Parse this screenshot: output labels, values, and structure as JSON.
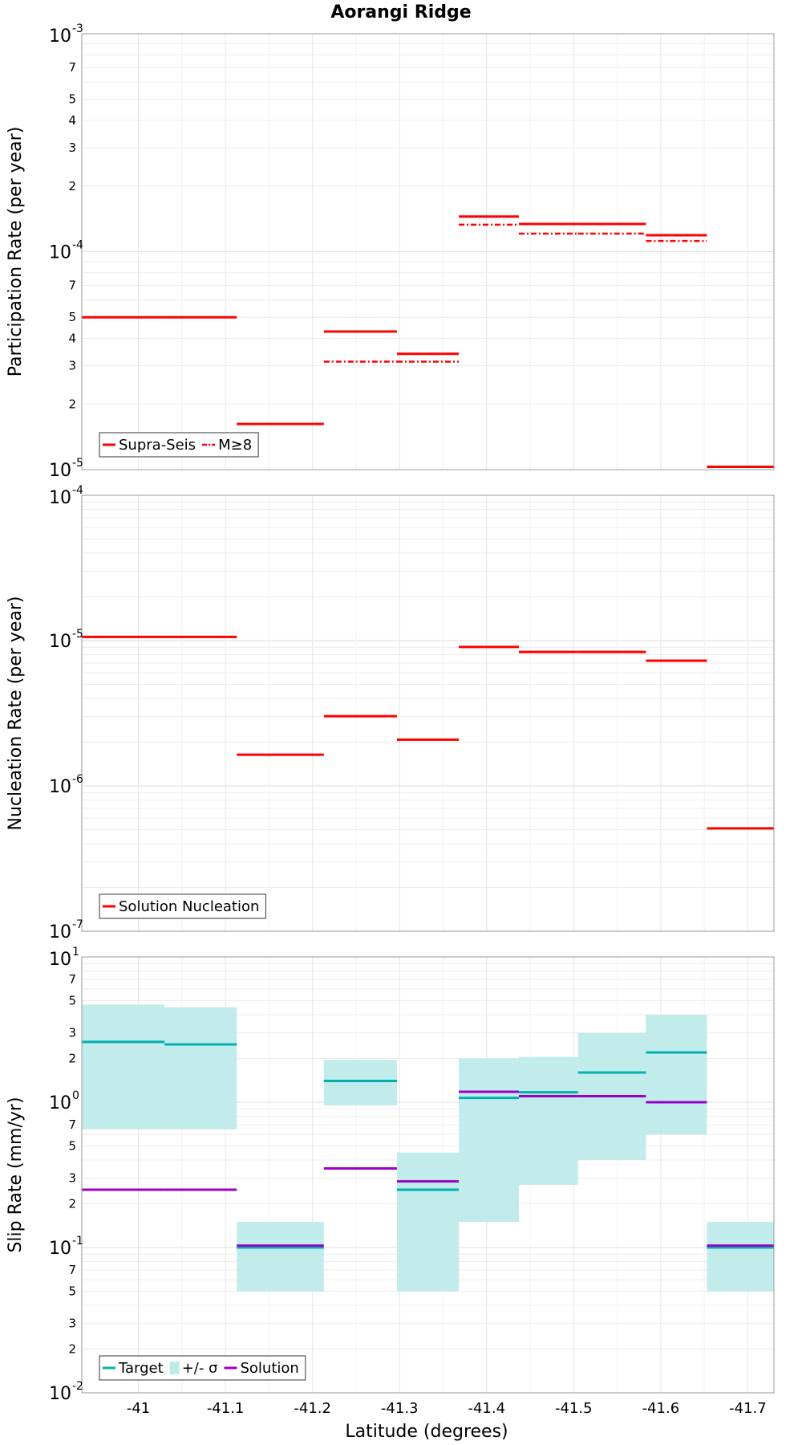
{
  "chart_data": {
    "title": "Aorangi Ridge",
    "xlabel": "Latitude (degrees)",
    "xlim": [
      -40.935,
      -41.73
    ],
    "xticks": [
      -41,
      -41.1,
      -41.2,
      -41.3,
      -41.4,
      -41.5,
      -41.6,
      -41.7
    ],
    "xtick_labels": [
      "-41",
      "-41.1",
      "-41.2",
      "-41.3",
      "-41.4",
      "-41.5",
      "-41.6",
      "-41.7"
    ],
    "colors": {
      "red": "#ff0000",
      "cyan": "#00b0b0",
      "band": "#bfeaea",
      "purple": "#9900cc"
    },
    "panels": [
      {
        "type": "line",
        "ylabel": "Participation Rate (per year)",
        "yscale": "log",
        "ylim": [
          1e-05,
          0.001
        ],
        "major_ticks": [
          {
            "value": 1e-05,
            "base": "10",
            "exp": "-5"
          },
          {
            "value": 0.0001,
            "base": "10",
            "exp": "-4"
          },
          {
            "value": 0.001,
            "base": "10",
            "exp": "-3"
          }
        ],
        "minor_ticks": [
          {
            "value": 2e-05,
            "label": "2"
          },
          {
            "value": 3e-05,
            "label": "3"
          },
          {
            "value": 4e-05,
            "label": "4"
          },
          {
            "value": 5e-05,
            "label": "5"
          },
          {
            "value": 7e-05,
            "label": "7"
          },
          {
            "value": 0.0002,
            "label": "2"
          },
          {
            "value": 0.0003,
            "label": "3"
          },
          {
            "value": 0.0004,
            "label": "4"
          },
          {
            "value": 0.0005,
            "label": "5"
          },
          {
            "value": 0.0007,
            "label": "7"
          }
        ],
        "legend": [
          {
            "label": "Supra-Seis",
            "style": "solid",
            "color": "#ff0000"
          },
          {
            "label": "M≥8",
            "style": "dashdot",
            "color": "#ff0000"
          }
        ],
        "series": [
          {
            "name": "Supra-Seis",
            "style": "solid",
            "color": "#ff0000",
            "segments": [
              {
                "x0": -40.935,
                "x1": -41.03,
                "y": 5e-05
              },
              {
                "x0": -41.03,
                "x1": -41.113,
                "y": 5e-05
              },
              {
                "x0": -41.113,
                "x1": -41.213,
                "y": 1.62e-05
              },
              {
                "x0": -41.213,
                "x1": -41.297,
                "y": 4.3e-05
              },
              {
                "x0": -41.297,
                "x1": -41.368,
                "y": 3.4e-05
              },
              {
                "x0": -41.368,
                "x1": -41.437,
                "y": 0.000145
              },
              {
                "x0": -41.437,
                "x1": -41.505,
                "y": 0.000134
              },
              {
                "x0": -41.505,
                "x1": -41.583,
                "y": 0.000134
              },
              {
                "x0": -41.583,
                "x1": -41.653,
                "y": 0.000119
              },
              {
                "x0": -41.653,
                "x1": -41.73,
                "y": 1.03e-05
              }
            ]
          },
          {
            "name": "M≥8",
            "style": "dashdot",
            "color": "#ff0000",
            "segments": [
              {
                "x0": -41.213,
                "x1": -41.297,
                "y": 3.13e-05
              },
              {
                "x0": -41.297,
                "x1": -41.368,
                "y": 3.13e-05
              },
              {
                "x0": -41.368,
                "x1": -41.437,
                "y": 0.000133
              },
              {
                "x0": -41.437,
                "x1": -41.505,
                "y": 0.000121
              },
              {
                "x0": -41.505,
                "x1": -41.583,
                "y": 0.000121
              },
              {
                "x0": -41.583,
                "x1": -41.653,
                "y": 0.000112
              },
              {
                "x0": -41.653,
                "x1": -41.73,
                "y": 1.03e-05
              }
            ]
          }
        ]
      },
      {
        "type": "line",
        "ylabel": "Nucleation Rate (per year)",
        "yscale": "log",
        "ylim": [
          1e-07,
          0.0001
        ],
        "major_ticks": [
          {
            "value": 1e-07,
            "base": "10",
            "exp": "-7"
          },
          {
            "value": 1e-06,
            "base": "10",
            "exp": "-6"
          },
          {
            "value": 1e-05,
            "base": "10",
            "exp": "-5"
          },
          {
            "value": 0.0001,
            "base": "10",
            "exp": "-4"
          }
        ],
        "minor_ticks": [],
        "legend": [
          {
            "label": "Solution Nucleation",
            "style": "solid",
            "color": "#ff0000"
          }
        ],
        "series": [
          {
            "name": "Solution Nucleation",
            "style": "solid",
            "color": "#ff0000",
            "segments": [
              {
                "x0": -40.935,
                "x1": -41.03,
                "y": 1.06e-05
              },
              {
                "x0": -41.03,
                "x1": -41.113,
                "y": 1.06e-05
              },
              {
                "x0": -41.113,
                "x1": -41.213,
                "y": 1.64e-06
              },
              {
                "x0": -41.213,
                "x1": -41.297,
                "y": 3.02e-06
              },
              {
                "x0": -41.297,
                "x1": -41.368,
                "y": 2.08e-06
              },
              {
                "x0": -41.368,
                "x1": -41.437,
                "y": 9.04e-06
              },
              {
                "x0": -41.437,
                "x1": -41.505,
                "y": 8.35e-06
              },
              {
                "x0": -41.505,
                "x1": -41.583,
                "y": 8.35e-06
              },
              {
                "x0": -41.583,
                "x1": -41.653,
                "y": 7.28e-06
              },
              {
                "x0": -41.653,
                "x1": -41.73,
                "y": 5.1e-07
              }
            ]
          }
        ]
      },
      {
        "type": "line",
        "ylabel": "Slip Rate (mm/yr)",
        "yscale": "log",
        "ylim": [
          0.01,
          10
        ],
        "major_ticks": [
          {
            "value": 0.01,
            "base": "10",
            "exp": "-2"
          },
          {
            "value": 0.1,
            "base": "10",
            "exp": "-1"
          },
          {
            "value": 1,
            "base": "10",
            "exp": "0"
          },
          {
            "value": 10,
            "base": "10",
            "exp": "1"
          }
        ],
        "minor_ticks": [
          {
            "value": 0.02,
            "label": "2"
          },
          {
            "value": 0.03,
            "label": "3"
          },
          {
            "value": 0.05,
            "label": "5"
          },
          {
            "value": 0.07,
            "label": "7"
          },
          {
            "value": 0.2,
            "label": "2"
          },
          {
            "value": 0.3,
            "label": "3"
          },
          {
            "value": 0.5,
            "label": "5"
          },
          {
            "value": 0.7,
            "label": "7"
          },
          {
            "value": 2,
            "label": "2"
          },
          {
            "value": 3,
            "label": "3"
          },
          {
            "value": 5,
            "label": "5"
          },
          {
            "value": 7,
            "label": "7"
          }
        ],
        "legend": [
          {
            "label": "Target",
            "style": "solid",
            "color": "#00b0b0"
          },
          {
            "label": "+/- σ",
            "style": "box",
            "color": "#bfeaea"
          },
          {
            "label": "Solution",
            "style": "solid",
            "color": "#9900cc"
          }
        ],
        "bands": [
          {
            "x0": -40.935,
            "x1": -41.03,
            "low": 0.65,
            "high": 4.7
          },
          {
            "x0": -41.03,
            "x1": -41.113,
            "low": 0.65,
            "high": 4.5
          },
          {
            "x0": -41.113,
            "x1": -41.213,
            "low": 0.05,
            "high": 0.15
          },
          {
            "x0": -41.213,
            "x1": -41.297,
            "low": 0.95,
            "high": 1.95
          },
          {
            "x0": -41.297,
            "x1": -41.368,
            "low": 0.05,
            "high": 0.45
          },
          {
            "x0": -41.368,
            "x1": -41.437,
            "low": 0.15,
            "high": 2.0
          },
          {
            "x0": -41.437,
            "x1": -41.505,
            "low": 0.27,
            "high": 2.05
          },
          {
            "x0": -41.505,
            "x1": -41.583,
            "low": 0.4,
            "high": 3.0
          },
          {
            "x0": -41.583,
            "x1": -41.653,
            "low": 0.6,
            "high": 4.0
          },
          {
            "x0": -41.653,
            "x1": -41.73,
            "low": 0.05,
            "high": 0.15
          }
        ],
        "series": [
          {
            "name": "Target",
            "style": "solid",
            "color": "#00b0b0",
            "segments": [
              {
                "x0": -40.935,
                "x1": -41.03,
                "y": 2.6
              },
              {
                "x0": -41.03,
                "x1": -41.113,
                "y": 2.5
              },
              {
                "x0": -41.113,
                "x1": -41.213,
                "y": 0.1
              },
              {
                "x0": -41.213,
                "x1": -41.297,
                "y": 1.4
              },
              {
                "x0": -41.297,
                "x1": -41.368,
                "y": 0.25
              },
              {
                "x0": -41.368,
                "x1": -41.437,
                "y": 1.07
              },
              {
                "x0": -41.437,
                "x1": -41.505,
                "y": 1.17
              },
              {
                "x0": -41.505,
                "x1": -41.583,
                "y": 1.6
              },
              {
                "x0": -41.583,
                "x1": -41.653,
                "y": 2.2
              },
              {
                "x0": -41.653,
                "x1": -41.73,
                "y": 0.1
              }
            ]
          },
          {
            "name": "Solution",
            "style": "solid",
            "color": "#9900cc",
            "segments": [
              {
                "x0": -40.935,
                "x1": -41.03,
                "y": 0.25
              },
              {
                "x0": -41.03,
                "x1": -41.113,
                "y": 0.25
              },
              {
                "x0": -41.113,
                "x1": -41.213,
                "y": 0.103
              },
              {
                "x0": -41.213,
                "x1": -41.297,
                "y": 0.35
              },
              {
                "x0": -41.297,
                "x1": -41.368,
                "y": 0.285
              },
              {
                "x0": -41.368,
                "x1": -41.437,
                "y": 1.18
              },
              {
                "x0": -41.437,
                "x1": -41.505,
                "y": 1.1
              },
              {
                "x0": -41.505,
                "x1": -41.583,
                "y": 1.1
              },
              {
                "x0": -41.583,
                "x1": -41.653,
                "y": 1.0
              },
              {
                "x0": -41.653,
                "x1": -41.73,
                "y": 0.103
              }
            ]
          }
        ]
      }
    ]
  }
}
